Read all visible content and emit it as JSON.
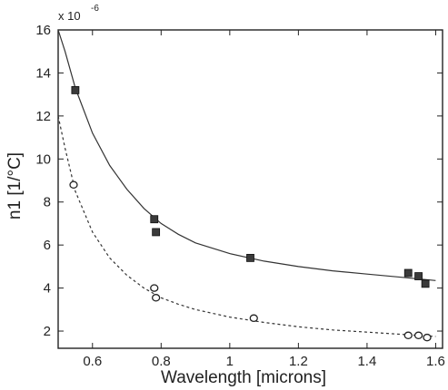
{
  "chart_data": {
    "type": "scatter",
    "title": "",
    "xlabel": "Wavelength [microns]",
    "ylabel": "n1 [1/°C]",
    "y_multiplier_label": "x 10",
    "y_multiplier_exponent": "-6",
    "xlim": [
      0.5,
      1.62
    ],
    "ylim": [
      1.2,
      16
    ],
    "xticks": [
      0.6,
      0.8,
      1,
      1.2,
      1.4,
      1.6
    ],
    "xtick_labels": [
      "0.6",
      "0.8",
      "1",
      "1.2",
      "1.4",
      "1.6"
    ],
    "yticks": [
      2,
      4,
      6,
      8,
      10,
      12,
      14,
      16
    ],
    "ytick_labels": [
      "2",
      "4",
      "6",
      "8",
      "10",
      "12",
      "14",
      "16"
    ],
    "grid": false,
    "legend": false,
    "series": [
      {
        "marker": "filled-square",
        "color": "#333333",
        "points": [
          {
            "x": 0.55,
            "y": 13.2
          },
          {
            "x": 0.78,
            "y": 7.2
          },
          {
            "x": 0.785,
            "y": 6.6
          },
          {
            "x": 1.06,
            "y": 5.4
          },
          {
            "x": 1.52,
            "y": 4.7
          },
          {
            "x": 1.55,
            "y": 4.55
          },
          {
            "x": 1.57,
            "y": 4.2
          }
        ],
        "fit_line": {
          "style": "solid",
          "points": [
            [
              0.5,
              16.0
            ],
            [
              0.52,
              15.0
            ],
            [
              0.55,
              13.3
            ],
            [
              0.6,
              11.2
            ],
            [
              0.65,
              9.7
            ],
            [
              0.7,
              8.6
            ],
            [
              0.75,
              7.7
            ],
            [
              0.8,
              7.0
            ],
            [
              0.85,
              6.5
            ],
            [
              0.9,
              6.1
            ],
            [
              1.0,
              5.6
            ],
            [
              1.1,
              5.25
            ],
            [
              1.2,
              5.0
            ],
            [
              1.3,
              4.8
            ],
            [
              1.4,
              4.65
            ],
            [
              1.5,
              4.5
            ],
            [
              1.6,
              4.35
            ]
          ]
        }
      },
      {
        "marker": "open-circle",
        "color": "#333333",
        "points": [
          {
            "x": 0.545,
            "y": 8.8
          },
          {
            "x": 0.78,
            "y": 4.0
          },
          {
            "x": 0.785,
            "y": 3.55
          },
          {
            "x": 1.07,
            "y": 2.6
          },
          {
            "x": 1.52,
            "y": 1.8
          },
          {
            "x": 1.55,
            "y": 1.8
          },
          {
            "x": 1.575,
            "y": 1.7
          }
        ],
        "fit_line": {
          "style": "dashed",
          "points": [
            [
              0.5,
              12.0
            ],
            [
              0.52,
              10.5
            ],
            [
              0.55,
              8.5
            ],
            [
              0.6,
              6.6
            ],
            [
              0.65,
              5.4
            ],
            [
              0.7,
              4.6
            ],
            [
              0.75,
              4.0
            ],
            [
              0.8,
              3.55
            ],
            [
              0.85,
              3.25
            ],
            [
              0.9,
              3.0
            ],
            [
              1.0,
              2.65
            ],
            [
              1.1,
              2.4
            ],
            [
              1.2,
              2.2
            ],
            [
              1.3,
              2.05
            ],
            [
              1.4,
              1.95
            ],
            [
              1.5,
              1.85
            ],
            [
              1.6,
              1.75
            ]
          ]
        }
      }
    ]
  }
}
